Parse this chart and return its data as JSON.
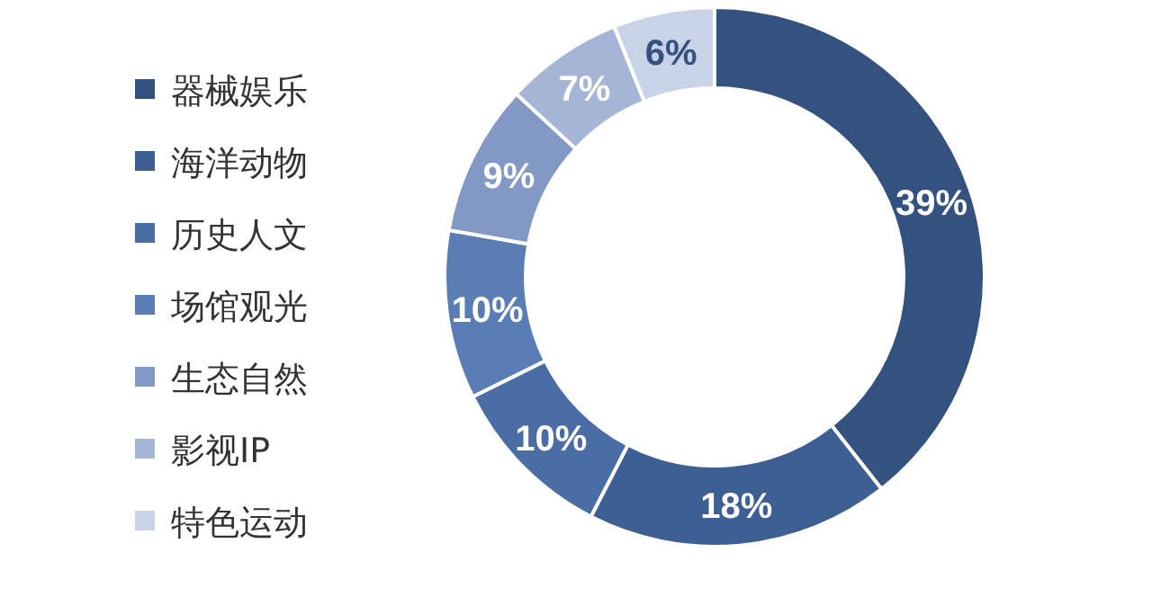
{
  "chart_data": {
    "type": "donut",
    "categories": [
      "器械娱乐",
      "海洋动物",
      "历史人文",
      "场馆观光",
      "生态自然",
      "影视IP",
      "特色运动"
    ],
    "values": [
      39,
      18,
      10,
      10,
      9,
      7,
      6
    ],
    "value_labels": [
      "39%",
      "18%",
      "10%",
      "10%",
      "9%",
      "7%",
      "6%"
    ],
    "colors": [
      "#34527f",
      "#3e5f93",
      "#4a6da5",
      "#5a7db5",
      "#8399c5",
      "#a5b5d5",
      "#c9d3e7"
    ],
    "legend": "left"
  }
}
